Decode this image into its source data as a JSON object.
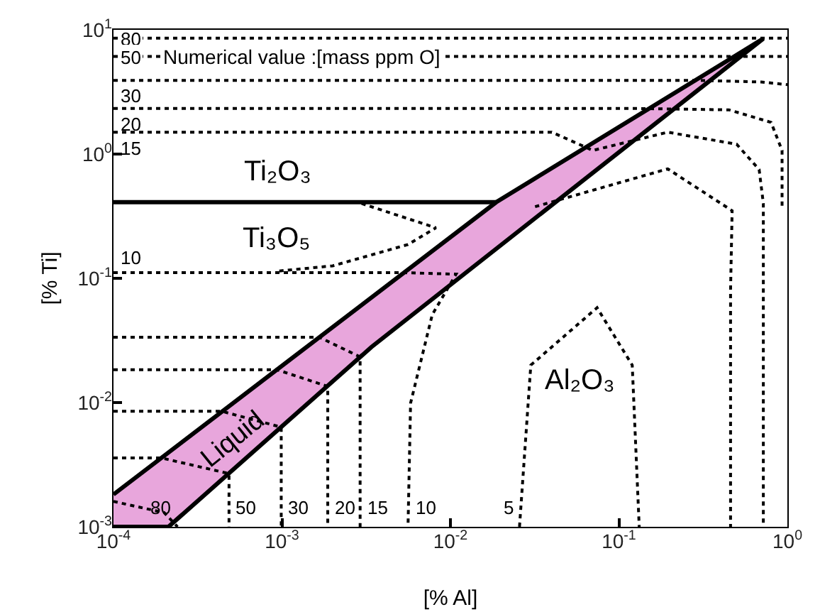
{
  "chart_data": {
    "type": "line",
    "xlabel": "[% Al]",
    "ylabel": "[% Ti]",
    "log": "xy",
    "grid": false,
    "marker": "none",
    "xlim": [
      0.0001,
      1
    ],
    "ylim": [
      0.001,
      10
    ],
    "xticks": [
      {
        "value": 0.0001,
        "label": "10$^{-4}$"
      },
      {
        "value": 0.001,
        "label": "10$^{-3}$"
      },
      {
        "value": 0.01,
        "label": "10$^{-2}$"
      },
      {
        "value": 0.1,
        "label": "10$^{-1}$"
      },
      {
        "value": 1,
        "label": "10$^{0}$"
      }
    ],
    "yticks": [
      {
        "value": 0.001,
        "label": "10$^{-3}$"
      },
      {
        "value": 0.01,
        "label": "10$^{-2}$"
      },
      {
        "value": 0.1,
        "label": "10$^{-1}$"
      },
      {
        "value": 1,
        "label": "10$^{0}$"
      },
      {
        "value": 10,
        "label": "10$^{1}$"
      }
    ],
    "series": [
      {
        "type": "area",
        "color": "#e8a6dc",
        "x": [
          0.0001,
          0.0187,
          0.72,
          0.0034,
          0.000212,
          0.0001
        ],
        "values": [
          0.00182,
          0.41,
          8.5,
          0.028,
          0.001,
          0.001
        ]
      },
      {
        "type": "line",
        "line_style": "dotted",
        "color": "#000000",
        "x": [
          0.0001,
          1
        ],
        "values": [
          8.56,
          8.56
        ]
      },
      {
        "type": "line",
        "line_style": "dotted",
        "color": "#000000",
        "x": [
          0.0001,
          1
        ],
        "values": [
          6.1,
          6.1
        ]
      },
      {
        "type": "line",
        "line_style": "dotted",
        "color": "#000000",
        "x": [
          0.0001,
          0.3,
          0.7,
          1
        ],
        "values": [
          3.92,
          3.92,
          3.8,
          3.62
        ]
      },
      {
        "type": "line",
        "line_style": "dotted",
        "color": "#000000",
        "x": [
          0.0001,
          0.12,
          0.45,
          0.8,
          0.93,
          0.93
        ],
        "values": [
          2.33,
          2.33,
          2.27,
          1.8,
          1.07,
          0.38
        ]
      },
      {
        "type": "line",
        "line_style": "dotted",
        "color": "#000000",
        "x": [
          0.0001,
          0.04,
          0.07,
          0.195,
          0.5,
          0.68,
          0.72,
          0.72
        ],
        "values": [
          1.5,
          1.5,
          1.07,
          1.5,
          1.2,
          0.75,
          0.4,
          0.001
        ]
      },
      {
        "type": "line",
        "line_style": "dotted",
        "color": "#000000",
        "x": [
          0.0318,
          0.195,
          0.47,
          0.46,
          0.46
        ],
        "values": [
          0.377,
          0.76,
          0.35,
          0.08,
          0.001
        ]
      },
      {
        "type": "line",
        "line_style": "dotted",
        "color": "#000000",
        "x": [
          0.00297,
          0.0082,
          0.0056,
          0.002,
          0.00093
        ],
        "values": [
          0.4,
          0.255,
          0.187,
          0.126,
          0.114
        ]
      },
      {
        "type": "line",
        "line_style": "dotted",
        "color": "#000000",
        "x": [
          0.0001,
          0.0053,
          0.0108,
          0.0078,
          0.0058,
          0.0056
        ],
        "values": [
          0.111,
          0.111,
          0.108,
          0.051,
          0.0099,
          0.001
        ]
      },
      {
        "type": "line",
        "line_style": "dotted",
        "color": "#000000",
        "x": [
          0.0001,
          0.00167,
          0.00291,
          0.00291
        ],
        "values": [
          0.0335,
          0.0335,
          0.0233,
          0.001
        ]
      },
      {
        "type": "line",
        "line_style": "dotted",
        "color": "#000000",
        "x": [
          0.0001,
          0.00093,
          0.00187,
          0.00187
        ],
        "values": [
          0.0184,
          0.0184,
          0.0135,
          0.001
        ]
      },
      {
        "type": "line",
        "line_style": "dotted",
        "color": "#000000",
        "x": [
          0.0001,
          0.00044,
          0.00099,
          0.00099
        ],
        "values": [
          0.0085,
          0.0085,
          0.00634,
          0.001
        ]
      },
      {
        "type": "line",
        "line_style": "dotted",
        "color": "#000000",
        "x": [
          0.0001,
          0.000193,
          0.000485,
          0.000485
        ],
        "values": [
          0.00358,
          0.00358,
          0.00268,
          0.001
        ]
      },
      {
        "type": "line",
        "line_style": "dotted",
        "color": "#000000",
        "x": [
          0.0001,
          0.0002,
          0.00024
        ],
        "values": [
          0.0016,
          0.0013,
          0.001
        ]
      },
      {
        "type": "line",
        "line_style": "dotted",
        "color": "#000000",
        "x": [
          0.0257,
          0.03,
          0.0742,
          0.12,
          0.132
        ],
        "values": [
          0.001,
          0.02,
          0.058,
          0.02,
          0.001
        ]
      },
      {
        "type": "line",
        "line_style": "solid",
        "color": "#000000",
        "x": [
          0.0001,
          0.0187
        ],
        "values": [
          0.41,
          0.41
        ]
      }
    ],
    "annotations": [
      "Numerical value :[mass ppm O]",
      "Ti₂O₃",
      "Ti₃O₅",
      "Al₂O₃",
      "Liquid",
      {
        "text": "80",
        "x": 0.0001,
        "y": 8.56
      },
      {
        "text": "50",
        "x": 0.0001,
        "y": 6.1
      },
      {
        "text": "30",
        "x": 0.0001,
        "y": 3.92
      },
      {
        "text": "20",
        "x": 0.0001,
        "y": 2.33
      },
      {
        "text": "15",
        "x": 0.0001,
        "y": 1.5
      },
      {
        "text": "10",
        "x": 0.0001,
        "y": 0.111
      },
      {
        "text": "80",
        "x": 0.00024,
        "y": 0.001
      },
      {
        "text": "50",
        "x": 0.000485,
        "y": 0.001
      },
      {
        "text": "30",
        "x": 0.00099,
        "y": 0.001
      },
      {
        "text": "20",
        "x": 0.00187,
        "y": 0.001
      },
      {
        "text": "15",
        "x": 0.00291,
        "y": 0.001
      },
      {
        "text": "10",
        "x": 0.0056,
        "y": 0.001
      },
      {
        "text": "5",
        "x": 0.0257,
        "y": 0.001
      }
    ]
  }
}
